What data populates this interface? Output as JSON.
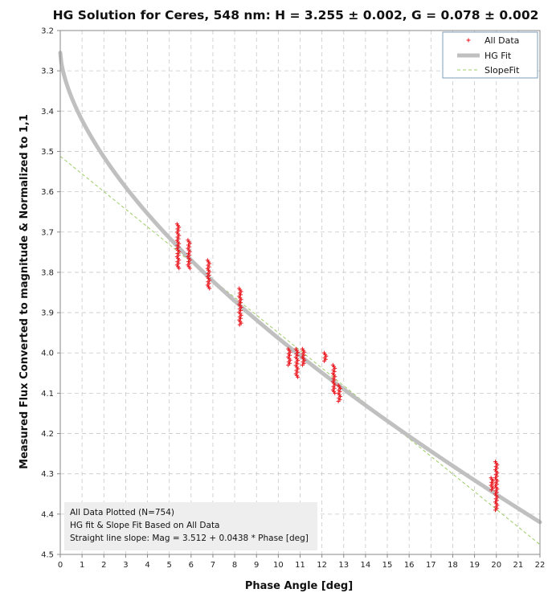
{
  "chart_data": {
    "type": "scatter",
    "title": "HG Solution for Ceres, 548 nm:  H = 3.255 ± 0.002, G = 0.078 ± 0.002",
    "xlabel": "Phase Angle [deg]",
    "ylabel": "Measured Flux Converted to magnitude & Normalized to 1,1",
    "xlim": [
      0,
      22
    ],
    "ylim": [
      3.2,
      4.5
    ],
    "y_inverted": true,
    "x_ticks": [
      "0",
      "1",
      "2",
      "3",
      "4",
      "5",
      "6",
      "7",
      "8",
      "9",
      "10",
      "11",
      "12",
      "13",
      "14",
      "15",
      "16",
      "17",
      "18",
      "19",
      "20",
      "21",
      "22"
    ],
    "y_ticks": [
      "3.2",
      "3.3",
      "3.4",
      "3.5",
      "3.6",
      "3.7",
      "3.8",
      "3.9",
      "4.0",
      "4.1",
      "4.2",
      "4.3",
      "4.4",
      "4.5"
    ],
    "grid": true,
    "legend_position": "top-right",
    "legend": [
      "All Data",
      "HG Fit",
      "SlopeFit"
    ],
    "series": [
      {
        "name": "All Data",
        "kind": "points",
        "color": "#e8141b",
        "marker": "+",
        "clusters": [
          {
            "x": 5.4,
            "y_min": 3.68,
            "y_max": 3.79
          },
          {
            "x": 5.9,
            "y_min": 3.72,
            "y_max": 3.79
          },
          {
            "x": 6.8,
            "y_min": 3.77,
            "y_max": 3.84
          },
          {
            "x": 8.25,
            "y_min": 3.84,
            "y_max": 3.93
          },
          {
            "x": 10.5,
            "y_min": 3.99,
            "y_max": 4.03
          },
          {
            "x": 10.85,
            "y_min": 3.99,
            "y_max": 4.06
          },
          {
            "x": 11.15,
            "y_min": 3.99,
            "y_max": 4.03
          },
          {
            "x": 12.15,
            "y_min": 4.0,
            "y_max": 4.02
          },
          {
            "x": 12.55,
            "y_min": 4.03,
            "y_max": 4.1
          },
          {
            "x": 12.8,
            "y_min": 4.08,
            "y_max": 4.12
          },
          {
            "x": 19.8,
            "y_min": 4.31,
            "y_max": 4.34
          },
          {
            "x": 20.0,
            "y_min": 4.27,
            "y_max": 4.39
          }
        ]
      },
      {
        "name": "HG Fit",
        "kind": "line",
        "color": "#c0c0c0",
        "H": 3.255,
        "G": 0.078
      },
      {
        "name": "SlopeFit",
        "kind": "dashed-line",
        "color": "#9ccc65",
        "intercept": 3.512,
        "slope": 0.0438
      }
    ],
    "annotation": [
      "All Data Plotted (N=754)",
      "HG fit & Slope Fit Based on All Data",
      "Straight line slope:  Mag = 3.512 + 0.0438 * Phase [deg]"
    ]
  }
}
